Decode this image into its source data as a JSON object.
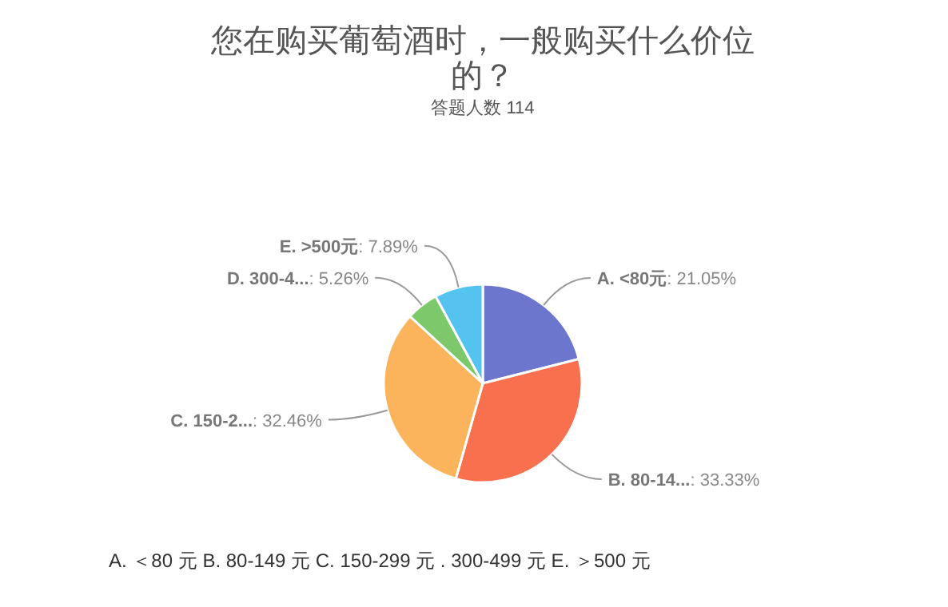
{
  "chart_data": {
    "type": "pie",
    "title": "您在购买葡萄酒时，一般购买什么价位的？",
    "subtitle": "答题人数 114",
    "categories": [
      "A. <80元",
      "B. 80-14...",
      "C. 150-2...",
      "D. 300-4...",
      "E. >500元"
    ],
    "values": [
      21.05,
      33.33,
      32.46,
      5.26,
      7.89
    ],
    "colors": [
      "#6b76cc",
      "#f8704e",
      "#fbb45c",
      "#7dc86a",
      "#55c3f0"
    ],
    "value_labels": [
      ": 21.05%",
      ": 33.33%",
      ": 32.46%",
      ": 5.26%",
      ": 7.89%"
    ],
    "annotations": [
      "A. ＜80 元 B. 80-149 元 C. 150-299 元 . 300-499 元 E. ＞500 元"
    ]
  }
}
